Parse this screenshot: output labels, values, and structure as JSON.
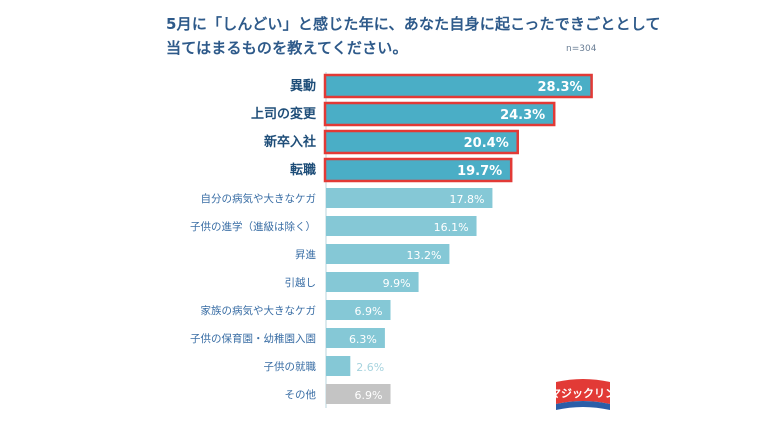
{
  "title": {
    "line1": "5月に「しんどい」と感じた年に、あなた自身に起こったできごととして",
    "line2": "当てはまるものを教えてください。"
  },
  "sample_size": "n=304",
  "logo_text": "マジックリン",
  "colors": {
    "accent": "#4aaec6",
    "bar": "#85c8d6",
    "other": "#c4c4c4",
    "highlight_border": "#e23a36",
    "label_bold": "#1f4e79",
    "label_normal": "#3a6ea5"
  },
  "chart_data": {
    "type": "bar",
    "orientation": "horizontal",
    "categories": [
      "異動",
      "上司の変更",
      "新卒入社",
      "転職",
      "自分の病気や大きなケガ",
      "子供の進学（進級は除く）",
      "昇進",
      "引越し",
      "家族の病気や大きなケガ",
      "子供の保育園・幼稚園入園",
      "子供の就職",
      "その他"
    ],
    "values": [
      28.3,
      24.3,
      20.4,
      19.7,
      17.8,
      16.1,
      13.2,
      9.9,
      6.9,
      6.3,
      2.6,
      6.9
    ],
    "data_labels": [
      "28.3%",
      "24.3%",
      "20.4%",
      "19.7%",
      "17.8%",
      "16.1%",
      "13.2%",
      "9.9%",
      "6.9%",
      "6.3%",
      "2.6%",
      "6.9%"
    ],
    "highlighted": [
      true,
      true,
      true,
      true,
      false,
      false,
      false,
      false,
      false,
      false,
      false,
      false
    ],
    "unit": "%",
    "xlim": [
      0,
      30
    ],
    "grid": false
  }
}
